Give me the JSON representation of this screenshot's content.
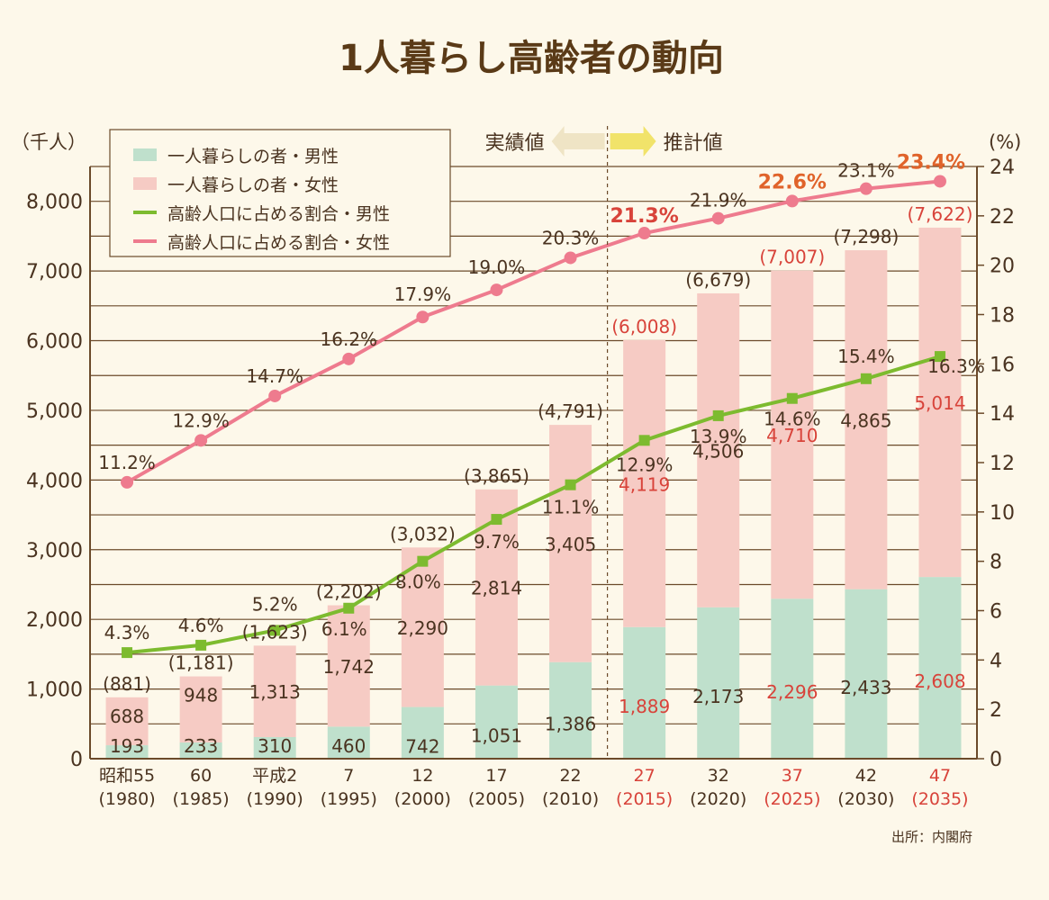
{
  "chart_data": {
    "type": "bar",
    "title": "1人暮らし高齢者の動向",
    "y_left_unit": "（千人）",
    "y_right_unit": "(%)",
    "ylim_left": [
      0,
      8500
    ],
    "ylim_right": [
      0,
      24
    ],
    "y_left_ticks": [
      "0",
      "1,000",
      "2,000",
      "3,000",
      "4,000",
      "5,000",
      "6,000",
      "7,000",
      "8,000"
    ],
    "y_right_ticks": [
      "0",
      "2",
      "4",
      "6",
      "8",
      "10",
      "12",
      "14",
      "16",
      "18",
      "20",
      "22",
      "24"
    ],
    "categories": [
      {
        "label": "昭和55",
        "year": "(1980)",
        "projected": false
      },
      {
        "label": "60",
        "year": "(1985)",
        "projected": false
      },
      {
        "label": "平成2",
        "year": "(1990)",
        "projected": false
      },
      {
        "label": "7",
        "year": "(1995)",
        "projected": false
      },
      {
        "label": "12",
        "year": "(2000)",
        "projected": false
      },
      {
        "label": "17",
        "year": "(2005)",
        "projected": false
      },
      {
        "label": "22",
        "year": "(2010)",
        "projected": false
      },
      {
        "label": "27",
        "year": "(2015)",
        "projected": true
      },
      {
        "label": "32",
        "year": "(2020)",
        "projected": false
      },
      {
        "label": "37",
        "year": "(2025)",
        "projected": true
      },
      {
        "label": "42",
        "year": "(2030)",
        "projected": false
      },
      {
        "label": "47",
        "year": "(2035)",
        "projected": true
      }
    ],
    "bar_series": [
      {
        "name": "一人暮らしの者・男性",
        "color": "#bfe0cc",
        "values": [
          193,
          233,
          310,
          460,
          742,
          1051,
          1386,
          1889,
          2173,
          2296,
          2433,
          2608
        ],
        "labels": [
          "193",
          "233",
          "310",
          "460",
          "742",
          "1,051",
          "1,386",
          "1,889",
          "2,173",
          "2,296",
          "2,433",
          "2,608"
        ]
      },
      {
        "name": "一人暮らしの者・女性",
        "color": "#f6cbc4",
        "values": [
          688,
          948,
          1313,
          1742,
          2290,
          2814,
          3405,
          4119,
          4506,
          4710,
          4865,
          5014
        ],
        "labels": [
          "688",
          "948",
          "1,313",
          "1,742",
          "2,290",
          "2,814",
          "3,405",
          "4,119",
          "4,506",
          "4,710",
          "4,865",
          "5,014"
        ]
      }
    ],
    "totals": [
      881,
      1181,
      1623,
      2202,
      3032,
      3865,
      4791,
      6008,
      6679,
      7007,
      7298,
      7622
    ],
    "total_labels": [
      "(881)",
      "(1,181)",
      "(1,623)",
      "(2,202)",
      "(3,032)",
      "(3,865)",
      "(4,791)",
      "(6,008)",
      "(6,679)",
      "(7,007)",
      "(7,298)",
      "(7,622)"
    ],
    "line_series": [
      {
        "name": "高齢人口に占める割合・男性",
        "color": "#7dbb2f",
        "values": [
          4.3,
          4.6,
          5.2,
          6.1,
          8.0,
          9.7,
          11.1,
          12.9,
          13.9,
          14.6,
          15.4,
          16.3
        ],
        "labels": [
          "4.3%",
          "4.6%",
          "5.2%",
          "6.1%",
          "8.0%",
          "9.7%",
          "11.1%",
          "12.9%",
          "13.9%",
          "14.6%",
          "15.4%",
          "16.3%"
        ]
      },
      {
        "name": "高齢人口に占める割合・女性",
        "color": "#ee7b8e",
        "values": [
          11.2,
          12.9,
          14.7,
          16.2,
          17.9,
          19.0,
          20.3,
          21.3,
          21.9,
          22.6,
          23.1,
          23.4
        ],
        "labels": [
          "11.2%",
          "12.9%",
          "14.7%",
          "16.2%",
          "17.9%",
          "19.0%",
          "20.3%",
          "21.3%",
          "21.9%",
          "22.6%",
          "23.1%",
          "23.4%"
        ]
      }
    ],
    "divider": {
      "actual_label": "実績値",
      "projected_label": "推計値"
    },
    "source": "出所：内閣府",
    "legend_position": "top-left",
    "grid": true
  }
}
